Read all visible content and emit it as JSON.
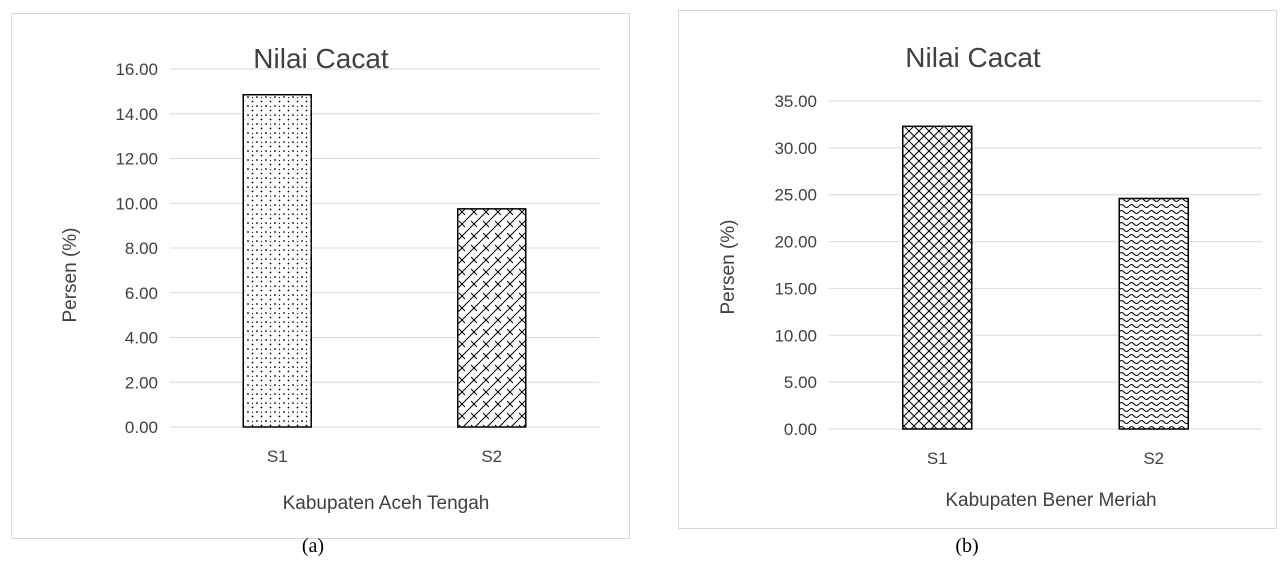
{
  "chart_data": [
    {
      "type": "bar",
      "panel": "a",
      "title": "Nilai Cacat",
      "xlabel": "Kabupaten Aceh Tengah",
      "ylabel": "Persen (%)",
      "categories": [
        "S1",
        "S2"
      ],
      "values": [
        14.85,
        9.75
      ],
      "ylim": [
        0,
        16
      ],
      "ytick_step": 2,
      "ytick_labels": [
        "0.00",
        "2.00",
        "4.00",
        "6.00",
        "8.00",
        "10.00",
        "12.00",
        "14.00",
        "16.00"
      ],
      "patterns": [
        "dots",
        "diagonal-brick"
      ],
      "grid": true,
      "legend": "none"
    },
    {
      "type": "bar",
      "panel": "b",
      "title": "Nilai Cacat",
      "xlabel": "Kabupaten Bener Meriah",
      "ylabel": "Persen (%)",
      "categories": [
        "S1",
        "S2"
      ],
      "values": [
        32.3,
        24.6
      ],
      "ylim": [
        0,
        35
      ],
      "ytick_step": 5,
      "ytick_labels": [
        "0.00",
        "5.00",
        "10.00",
        "15.00",
        "20.00",
        "25.00",
        "30.00",
        "35.00"
      ],
      "patterns": [
        "crosshatch",
        "wave"
      ],
      "grid": true,
      "legend": "none"
    }
  ],
  "captions": {
    "a": "(a)",
    "b": "(b)"
  }
}
